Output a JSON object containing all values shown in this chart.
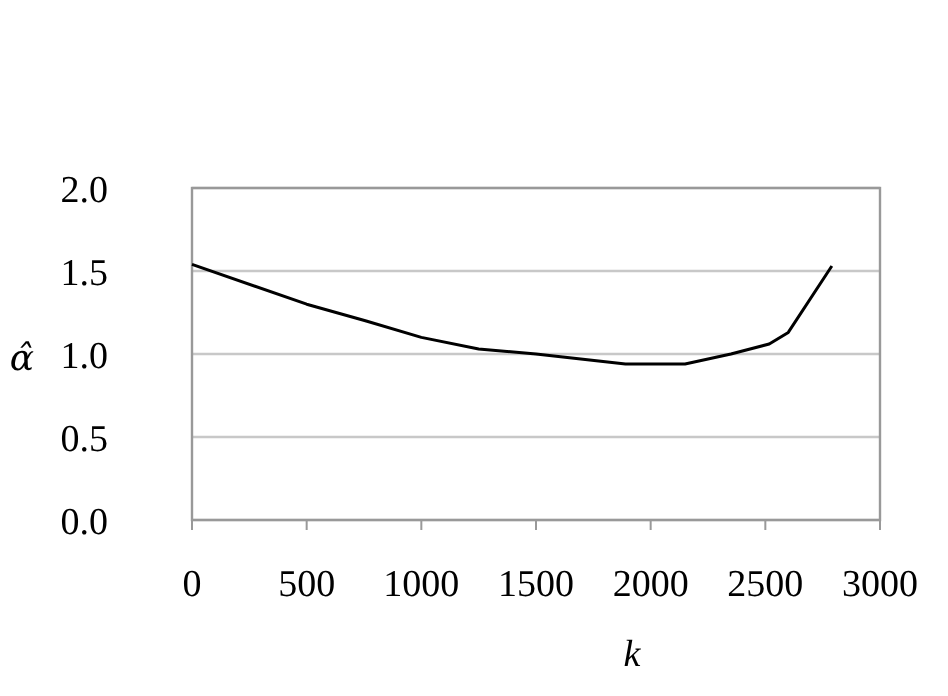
{
  "chart_data": {
    "type": "line",
    "xlabel": "k",
    "ylabel": "α̂",
    "x": [
      0,
      500,
      756,
      1000,
      1250,
      1500,
      1890,
      2150,
      2350,
      2517,
      2600,
      2790
    ],
    "series": [
      {
        "color": "#000000",
        "values": [
          1.54,
          1.3,
          1.2,
          1.1,
          1.03,
          1.0,
          0.94,
          0.94,
          1.0,
          1.06,
          1.13,
          1.53
        ]
      }
    ],
    "xlim": [
      0,
      3000
    ],
    "xticks": [
      0,
      500,
      1000,
      1500,
      2000,
      2500,
      3000
    ],
    "ylim": [
      0,
      2
    ],
    "yticks": [
      {
        "value": 0,
        "label": "0.0"
      },
      {
        "value": 0.5,
        "label": "0.5"
      },
      {
        "value": 1,
        "label": "1.0"
      },
      {
        "value": 1.5,
        "label": "1.5"
      },
      {
        "value": 2,
        "label": "2.0"
      }
    ],
    "grid": "y",
    "marker": "none",
    "line_style": "solid"
  }
}
